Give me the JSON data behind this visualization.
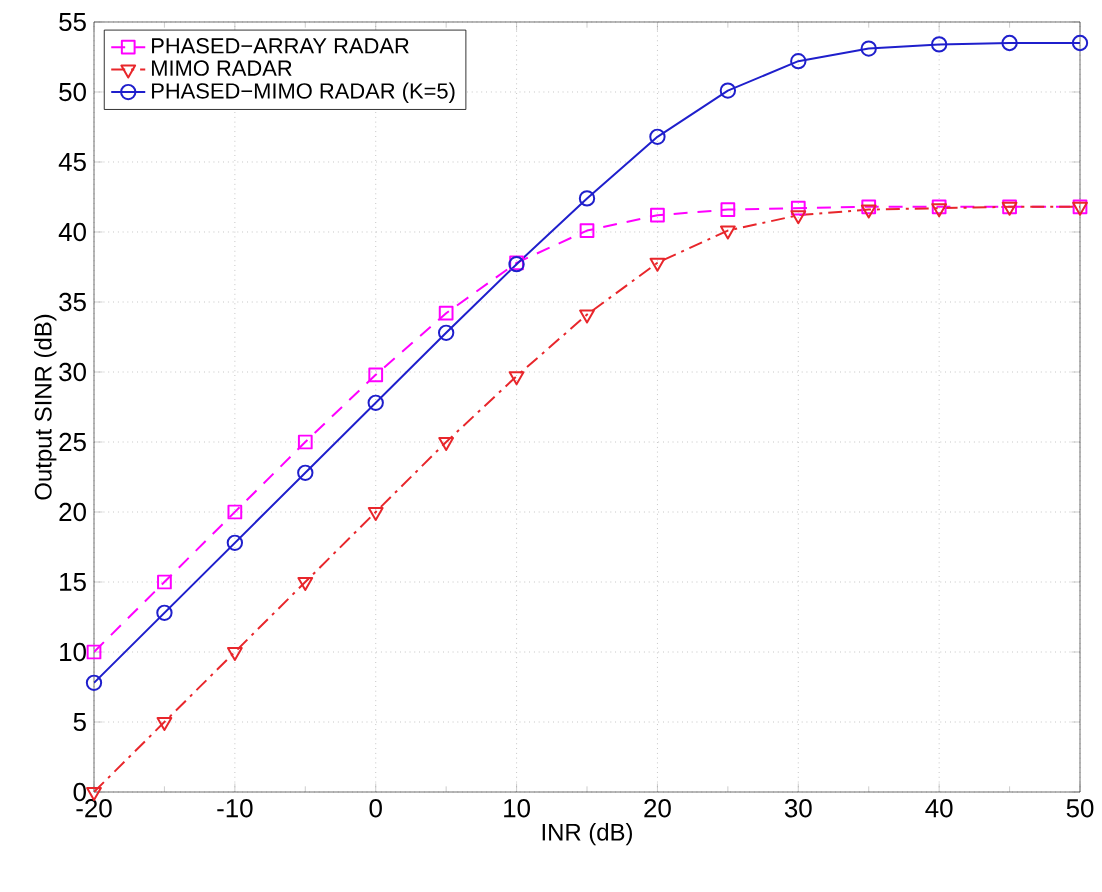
{
  "chart_data": {
    "type": "line",
    "xlabel": "INR (dB)",
    "ylabel": "Output SINR (dB)",
    "x": [
      -20,
      -15,
      -10,
      -5,
      0,
      5,
      10,
      15,
      20,
      25,
      30,
      35,
      40,
      45,
      50
    ],
    "series": [
      {
        "name": "PHASED−ARRAY RADAR",
        "color": "#ff00ff",
        "marker": "square",
        "line_style": "dashed",
        "values": [
          10,
          15,
          20,
          25,
          29.8,
          34.2,
          37.8,
          40.1,
          41.2,
          41.6,
          41.7,
          41.8,
          41.8,
          41.8,
          41.8
        ]
      },
      {
        "name": "MIMO RADAR",
        "color": "#e8262b",
        "marker": "triangle",
        "line_style": "dashdot",
        "values": [
          0,
          5,
          10,
          15,
          20,
          25,
          29.7,
          34.1,
          37.8,
          40.1,
          41.2,
          41.6,
          41.7,
          41.8,
          41.8
        ]
      },
      {
        "name": "PHASED−MIMO RADAR (K=5)",
        "color": "#1f1fcc",
        "marker": "circle",
        "line_style": "solid",
        "values": [
          7.8,
          12.8,
          17.8,
          22.8,
          27.8,
          32.8,
          37.7,
          42.4,
          46.8,
          50.1,
          52.2,
          53.1,
          53.4,
          53.5,
          53.5
        ]
      }
    ],
    "xlim": [
      -20,
      50
    ],
    "ylim": [
      0,
      55
    ],
    "xticks": [
      -20,
      -10,
      0,
      10,
      20,
      30,
      40,
      50
    ],
    "yticks": [
      0,
      5,
      10,
      15,
      20,
      25,
      30,
      35,
      40,
      45,
      50,
      55
    ],
    "grid": true,
    "legend": "top left"
  }
}
